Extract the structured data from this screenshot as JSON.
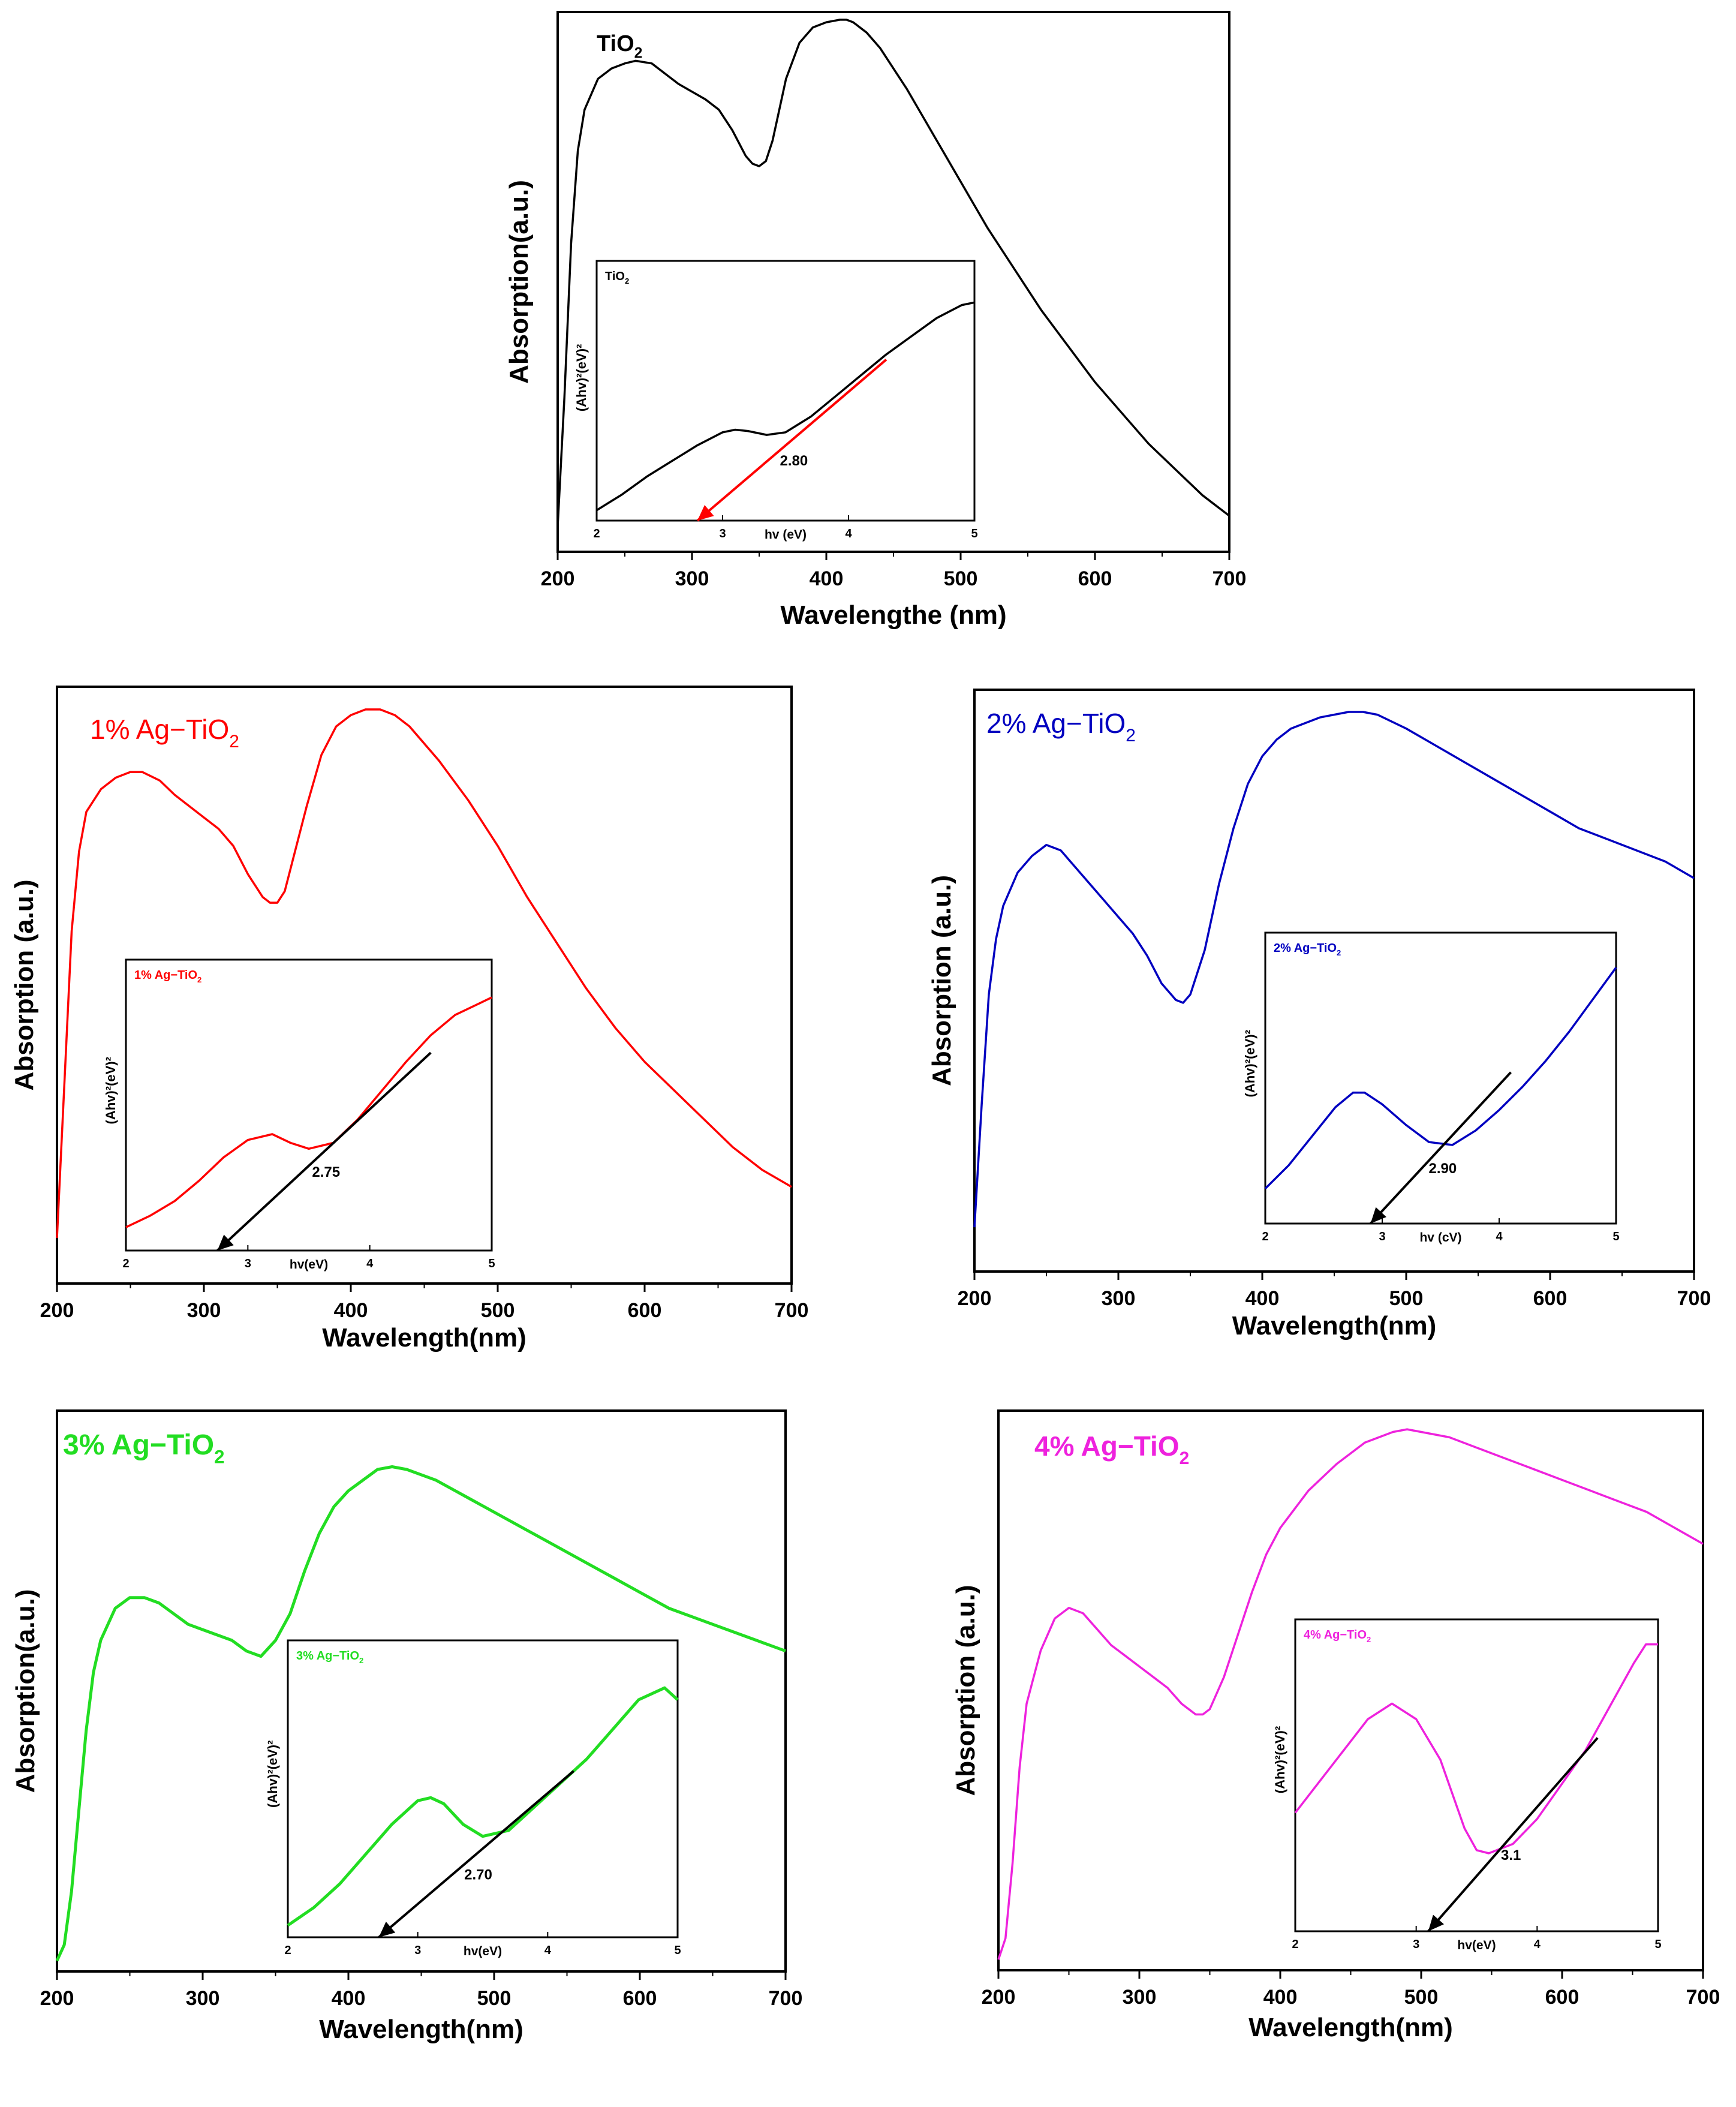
{
  "chart_data": [
    {
      "type": "line",
      "label_main": "TiO",
      "label_sub": "2",
      "label_bold": true,
      "color": "#000000",
      "xlabel": "Wavelengthe (nm)",
      "ylabel": "Absorption(a.u.)",
      "xlim": [
        200,
        700
      ],
      "ylim": [
        0,
        1.05
      ],
      "xticks": [
        200,
        300,
        400,
        500,
        600,
        700
      ],
      "series": [
        {
          "x": [
            200,
            205,
            210,
            215,
            220,
            230,
            240,
            250,
            258,
            270,
            280,
            290,
            300,
            310,
            320,
            330,
            340,
            345,
            350,
            355,
            360,
            365,
            370,
            380,
            390,
            400,
            410,
            415,
            420,
            430,
            440,
            450,
            460,
            480,
            500,
            520,
            540,
            560,
            580,
            600,
            620,
            640,
            660,
            680,
            700
          ],
          "y": [
            0.05,
            0.3,
            0.6,
            0.78,
            0.86,
            0.92,
            0.94,
            0.95,
            0.955,
            0.95,
            0.93,
            0.91,
            0.895,
            0.88,
            0.86,
            0.82,
            0.77,
            0.755,
            0.75,
            0.76,
            0.8,
            0.86,
            0.92,
            0.99,
            1.02,
            1.03,
            1.035,
            1.035,
            1.03,
            1.01,
            0.98,
            0.94,
            0.9,
            0.81,
            0.72,
            0.63,
            0.55,
            0.47,
            0.4,
            0.33,
            0.27,
            0.21,
            0.16,
            0.11,
            0.07
          ]
        }
      ],
      "inset": {
        "label_main": "TiO",
        "label_sub": "2",
        "xlabel": "hv (eV)",
        "ylabel": "(Ahv)²(eV)²",
        "xlim": [
          2,
          5
        ],
        "ylim": [
          0,
          1
        ],
        "xticks": [
          2,
          3,
          4,
          5
        ],
        "x": [
          2,
          2.2,
          2.4,
          2.6,
          2.8,
          3.0,
          3.1,
          3.2,
          3.35,
          3.5,
          3.7,
          3.9,
          4.1,
          4.3,
          4.5,
          4.7,
          4.9,
          5.0
        ],
        "y": [
          0.04,
          0.1,
          0.17,
          0.23,
          0.29,
          0.34,
          0.35,
          0.345,
          0.33,
          0.34,
          0.4,
          0.48,
          0.56,
          0.64,
          0.71,
          0.78,
          0.83,
          0.84
        ],
        "fit_line": [
          [
            2.8,
            0.0
          ],
          [
            4.3,
            0.62
          ]
        ],
        "fit_color": "#ff0000",
        "band_gap_label": "2.80"
      }
    },
    {
      "type": "line",
      "label_main": "1% Ag−TiO",
      "label_sub": "2",
      "label_bold": false,
      "color": "#ff0000",
      "xlabel": "Wavelength(nm)",
      "ylabel": "Absorption (a.u.)",
      "xlim": [
        200,
        700
      ],
      "ylim": [
        0,
        1.05
      ],
      "xticks": [
        200,
        300,
        400,
        500,
        600,
        700
      ],
      "series": [
        {
          "x": [
            200,
            205,
            210,
            215,
            220,
            230,
            240,
            250,
            258,
            270,
            280,
            290,
            300,
            310,
            320,
            330,
            340,
            345,
            350,
            355,
            360,
            370,
            380,
            390,
            400,
            410,
            420,
            430,
            440,
            460,
            480,
            500,
            520,
            540,
            560,
            580,
            600,
            620,
            640,
            660,
            680,
            700
          ],
          "y": [
            0.08,
            0.35,
            0.62,
            0.76,
            0.83,
            0.87,
            0.89,
            0.9,
            0.9,
            0.885,
            0.86,
            0.84,
            0.82,
            0.8,
            0.77,
            0.72,
            0.68,
            0.67,
            0.67,
            0.69,
            0.74,
            0.84,
            0.93,
            0.98,
            1.0,
            1.01,
            1.01,
            1.0,
            0.98,
            0.92,
            0.85,
            0.77,
            0.68,
            0.6,
            0.52,
            0.45,
            0.39,
            0.34,
            0.29,
            0.24,
            0.2,
            0.17
          ]
        }
      ],
      "inset": {
        "label_main": "1% Ag−TiO",
        "label_sub": "2",
        "xlabel": "hv(eV)",
        "ylabel": "(Ahv)²(eV)²",
        "xlim": [
          2,
          5
        ],
        "ylim": [
          0,
          1
        ],
        "xticks": [
          2,
          3,
          4,
          5
        ],
        "x": [
          2,
          2.2,
          2.4,
          2.6,
          2.8,
          3.0,
          3.2,
          3.35,
          3.5,
          3.7,
          3.9,
          4.1,
          4.3,
          4.5,
          4.7,
          4.9,
          5.0
        ],
        "y": [
          0.08,
          0.12,
          0.17,
          0.24,
          0.32,
          0.38,
          0.4,
          0.37,
          0.35,
          0.37,
          0.45,
          0.55,
          0.65,
          0.74,
          0.81,
          0.85,
          0.87
        ],
        "fit_line": [
          [
            2.75,
            0.0
          ],
          [
            4.5,
            0.68
          ]
        ],
        "fit_color": "#000000",
        "band_gap_label": "2.75"
      }
    },
    {
      "type": "line",
      "label_main": "2% Ag−TiO",
      "label_sub": "2",
      "label_bold": false,
      "color": "#0000c0",
      "xlabel": "Wavelength(nm)",
      "ylabel": "Absorption (a.u.)",
      "xlim": [
        200,
        700
      ],
      "ylim": [
        0,
        1.05
      ],
      "xticks": [
        200,
        300,
        400,
        500,
        600,
        700
      ],
      "series": [
        {
          "x": [
            200,
            205,
            210,
            215,
            220,
            230,
            240,
            250,
            260,
            270,
            280,
            290,
            300,
            310,
            320,
            330,
            340,
            345,
            350,
            360,
            370,
            380,
            390,
            400,
            410,
            420,
            440,
            460,
            470,
            480,
            500,
            520,
            540,
            560,
            580,
            600,
            620,
            640,
            660,
            680,
            700
          ],
          "y": [
            0.08,
            0.3,
            0.5,
            0.6,
            0.66,
            0.72,
            0.75,
            0.77,
            0.76,
            0.73,
            0.7,
            0.67,
            0.64,
            0.61,
            0.57,
            0.52,
            0.49,
            0.485,
            0.5,
            0.58,
            0.7,
            0.8,
            0.88,
            0.93,
            0.96,
            0.98,
            1.0,
            1.01,
            1.01,
            1.005,
            0.98,
            0.95,
            0.92,
            0.89,
            0.86,
            0.83,
            0.8,
            0.78,
            0.76,
            0.74,
            0.71
          ]
        }
      ],
      "inset": {
        "label_main": "2% Ag−TiO",
        "label_sub": "2",
        "xlabel": "hv (cV)",
        "ylabel": "(Ahv)²(eV)²",
        "xlim": [
          2,
          5
        ],
        "ylim": [
          0,
          1
        ],
        "xticks": [
          2,
          3,
          4,
          5
        ],
        "x": [
          2,
          2.2,
          2.4,
          2.6,
          2.75,
          2.85,
          3.0,
          3.2,
          3.4,
          3.6,
          3.8,
          4.0,
          4.2,
          4.4,
          4.6,
          4.8,
          5.0
        ],
        "y": [
          0.12,
          0.2,
          0.3,
          0.4,
          0.45,
          0.45,
          0.41,
          0.34,
          0.28,
          0.27,
          0.32,
          0.39,
          0.47,
          0.56,
          0.66,
          0.77,
          0.88
        ],
        "fit_line": [
          [
            2.9,
            0.0
          ],
          [
            4.1,
            0.52
          ]
        ],
        "fit_color": "#000000",
        "band_gap_label": "2.90"
      }
    },
    {
      "type": "line",
      "label_main": "3% Ag−TiO",
      "label_sub": "2",
      "label_bold": true,
      "color": "#22dd22",
      "xlabel": "Wavelength(nm)",
      "ylabel": "Absorption(a.u.)",
      "xlim": [
        200,
        700
      ],
      "ylim": [
        0,
        1.05
      ],
      "xticks": [
        200,
        300,
        400,
        500,
        600,
        700
      ],
      "series": [
        {
          "x": [
            200,
            205,
            210,
            215,
            220,
            225,
            230,
            240,
            250,
            260,
            270,
            280,
            290,
            300,
            310,
            320,
            330,
            340,
            350,
            360,
            370,
            380,
            390,
            400,
            410,
            420,
            430,
            440,
            460,
            480,
            500,
            520,
            540,
            560,
            580,
            600,
            620,
            640,
            660,
            680,
            700
          ],
          "y": [
            0.02,
            0.05,
            0.15,
            0.3,
            0.45,
            0.56,
            0.62,
            0.68,
            0.7,
            0.7,
            0.69,
            0.67,
            0.65,
            0.64,
            0.63,
            0.62,
            0.6,
            0.59,
            0.62,
            0.67,
            0.75,
            0.82,
            0.87,
            0.9,
            0.92,
            0.94,
            0.945,
            0.94,
            0.92,
            0.89,
            0.86,
            0.83,
            0.8,
            0.77,
            0.74,
            0.71,
            0.68,
            0.66,
            0.64,
            0.62,
            0.6
          ]
        }
      ],
      "inset": {
        "label_main": "3% Ag−TiO",
        "label_sub": "2",
        "xlabel": "hv(eV)",
        "ylabel": "(Ahv)²(eV)²",
        "xlim": [
          2,
          5
        ],
        "ylim": [
          0,
          1
        ],
        "xticks": [
          2,
          3,
          4,
          5
        ],
        "x": [
          2,
          2.2,
          2.4,
          2.6,
          2.8,
          3.0,
          3.1,
          3.2,
          3.35,
          3.5,
          3.7,
          3.9,
          4.1,
          4.3,
          4.5,
          4.7,
          4.9,
          5.0
        ],
        "y": [
          0.04,
          0.1,
          0.18,
          0.28,
          0.38,
          0.46,
          0.47,
          0.45,
          0.38,
          0.34,
          0.36,
          0.44,
          0.52,
          0.6,
          0.7,
          0.8,
          0.84,
          0.8
        ],
        "fit_line": [
          [
            2.7,
            0.0
          ],
          [
            4.2,
            0.56
          ]
        ],
        "fit_color": "#000000",
        "band_gap_label": "2.70"
      }
    },
    {
      "type": "line",
      "label_main": "4% Ag−TiO",
      "label_sub": "2",
      "label_bold": true,
      "color": "#ee22dd",
      "xlabel": "Wavelength(nm)",
      "ylabel": "Absorption (a.u.)",
      "xlim": [
        200,
        700
      ],
      "ylim": [
        0,
        1.05
      ],
      "xticks": [
        200,
        300,
        400,
        500,
        600,
        700
      ],
      "series": [
        {
          "x": [
            200,
            205,
            210,
            215,
            220,
            230,
            240,
            250,
            260,
            270,
            280,
            290,
            300,
            310,
            320,
            330,
            340,
            345,
            350,
            360,
            370,
            380,
            390,
            400,
            420,
            440,
            460,
            480,
            490,
            500,
            520,
            540,
            560,
            580,
            600,
            620,
            640,
            660,
            680,
            700
          ],
          "y": [
            0.02,
            0.06,
            0.2,
            0.38,
            0.5,
            0.6,
            0.66,
            0.68,
            0.67,
            0.64,
            0.61,
            0.59,
            0.57,
            0.55,
            0.53,
            0.5,
            0.48,
            0.48,
            0.49,
            0.55,
            0.63,
            0.71,
            0.78,
            0.83,
            0.9,
            0.95,
            0.99,
            1.01,
            1.015,
            1.01,
            1.0,
            0.98,
            0.96,
            0.94,
            0.92,
            0.9,
            0.88,
            0.86,
            0.83,
            0.8
          ]
        }
      ],
      "inset": {
        "label_main": "4% Ag−TiO",
        "label_sub": "2",
        "xlabel": "hv(eV)",
        "ylabel": "(Ahv)²(eV)²",
        "xlim": [
          2,
          5
        ],
        "ylim": [
          0,
          1
        ],
        "xticks": [
          2,
          3,
          4,
          5
        ],
        "x": [
          2,
          2.2,
          2.4,
          2.6,
          2.8,
          3.0,
          3.2,
          3.4,
          3.5,
          3.6,
          3.8,
          4.0,
          4.2,
          4.4,
          4.6,
          4.8,
          4.9,
          5.0
        ],
        "y": [
          0.38,
          0.48,
          0.58,
          0.68,
          0.73,
          0.68,
          0.55,
          0.33,
          0.26,
          0.25,
          0.28,
          0.36,
          0.47,
          0.58,
          0.72,
          0.86,
          0.92,
          0.92
        ],
        "fit_line": [
          [
            3.1,
            0.0
          ],
          [
            4.5,
            0.62
          ]
        ],
        "fit_color": "#000000",
        "band_gap_label": "3.1"
      }
    }
  ]
}
